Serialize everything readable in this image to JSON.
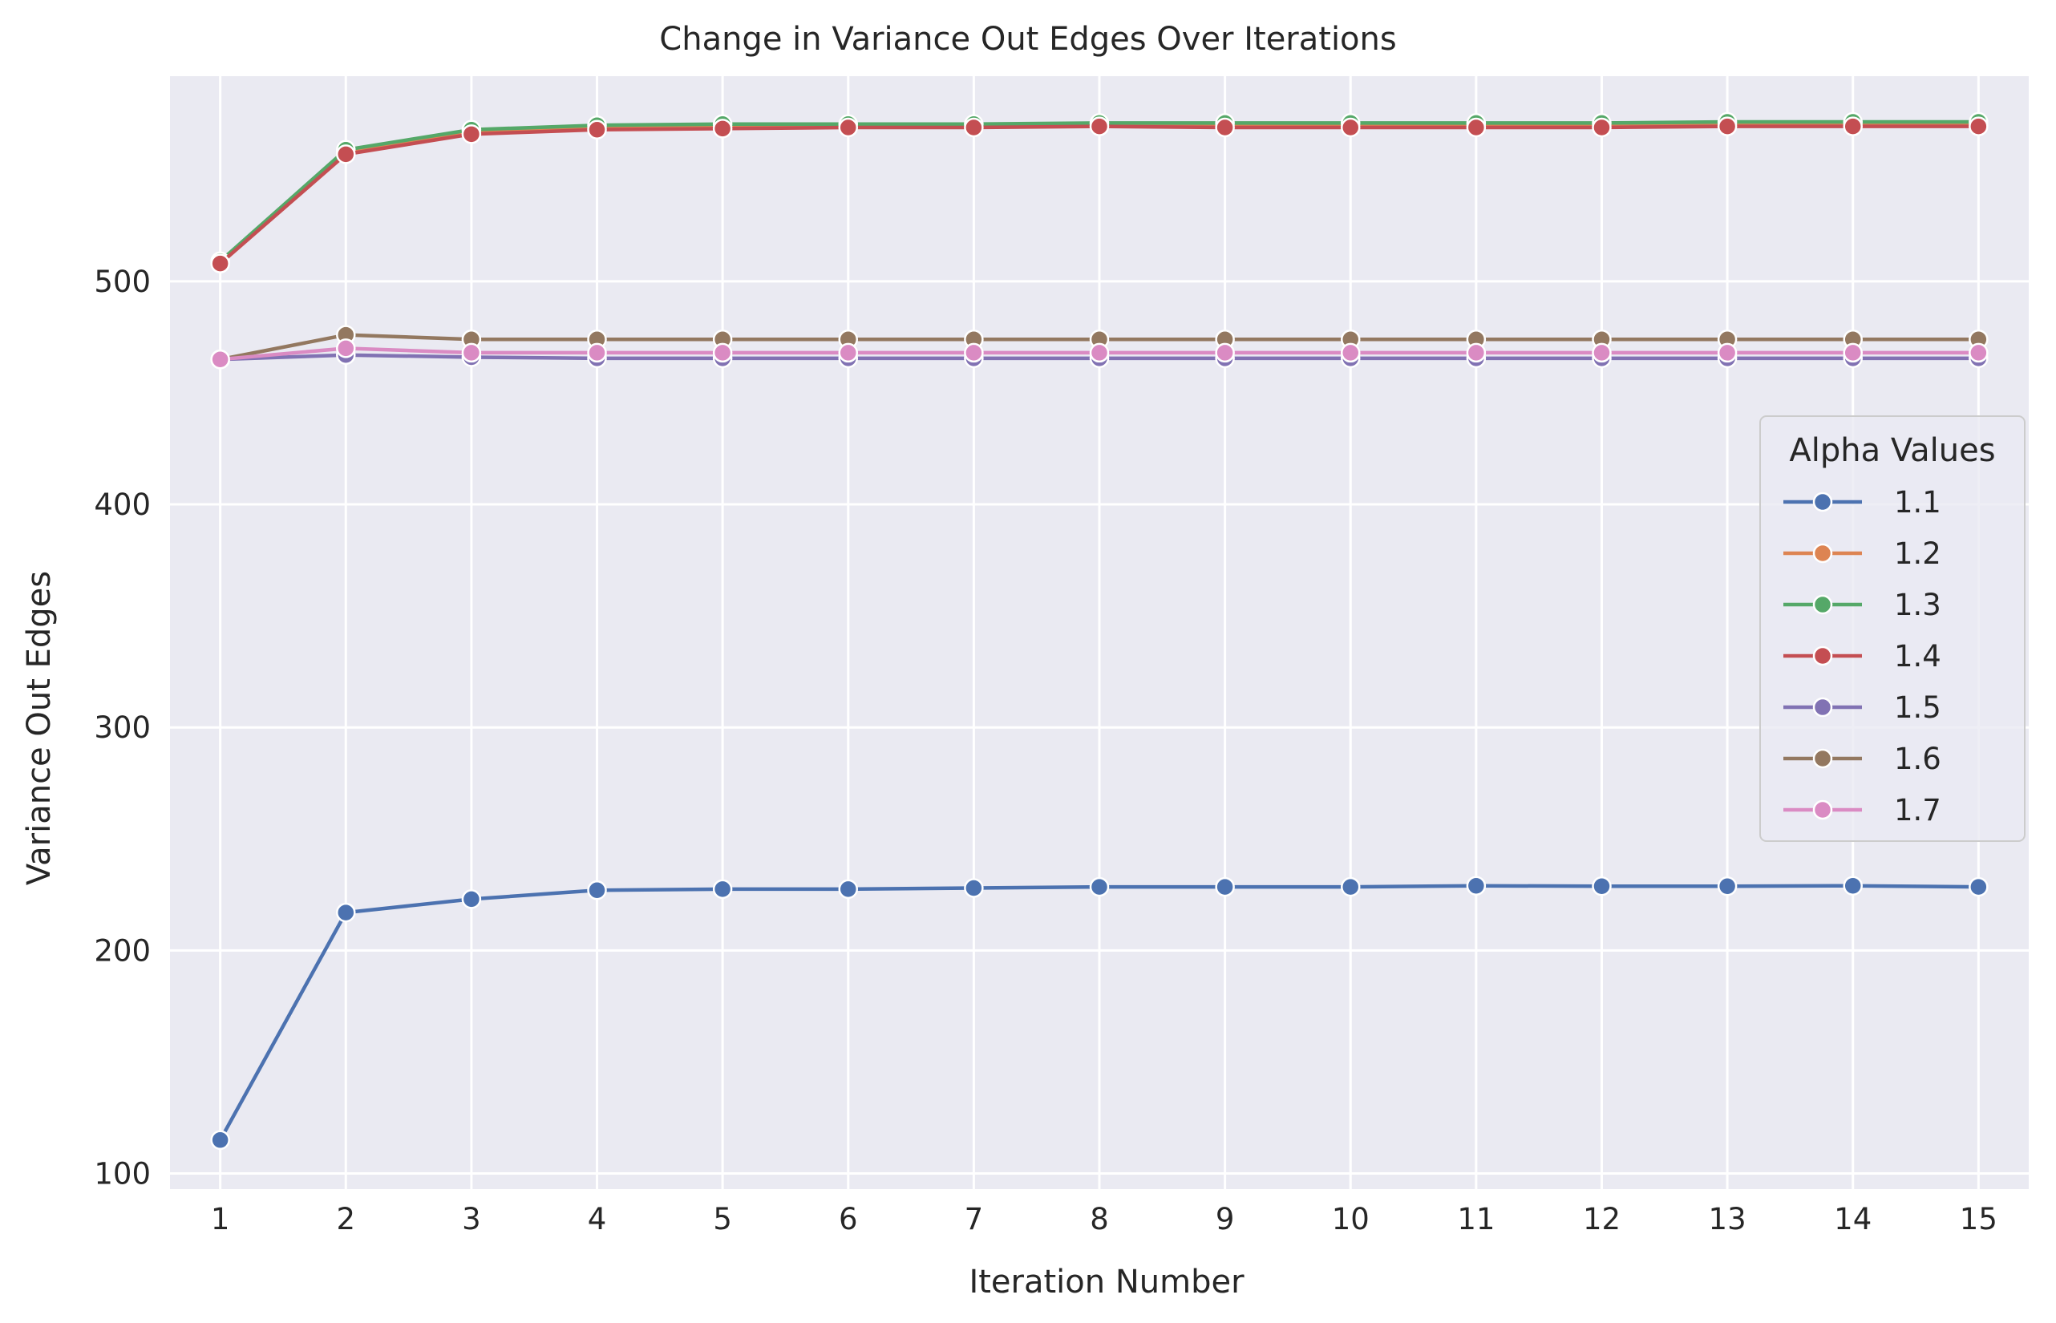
{
  "chart_data": {
    "type": "line",
    "title": "Change in Variance Out Edges Over Iterations",
    "xlabel": "Iteration Number",
    "ylabel": "Variance Out Edges",
    "x": [
      1,
      2,
      3,
      4,
      5,
      6,
      7,
      8,
      9,
      10,
      11,
      12,
      13,
      14,
      15
    ],
    "x_ticks": [
      1,
      2,
      3,
      4,
      5,
      6,
      7,
      8,
      9,
      10,
      11,
      12,
      13,
      14,
      15
    ],
    "y_ticks": [
      100,
      200,
      300,
      400,
      500
    ],
    "xlim": [
      0.6,
      15.4
    ],
    "ylim": [
      93,
      592
    ],
    "grid": true,
    "legend": {
      "title": "Alpha Values",
      "placement": "center-right"
    },
    "series": [
      {
        "name": "1.1",
        "color": "#4c72b0",
        "values": [
          115,
          217,
          223,
          227,
          227.5,
          227.5,
          228,
          228.5,
          228.5,
          228.5,
          229,
          228.8,
          228.8,
          229,
          228.5
        ]
      },
      {
        "name": "1.2",
        "color": "#dd8452",
        "values": [
          509,
          558,
          567,
          569,
          569.5,
          569.5,
          569.5,
          570,
          569.5,
          569.5,
          569.5,
          569.5,
          570,
          570,
          570
        ]
      },
      {
        "name": "1.3",
        "color": "#55a868",
        "values": [
          509,
          559,
          568,
          570,
          570.5,
          570.5,
          570.5,
          571,
          571,
          571,
          571,
          571,
          571.5,
          571.5,
          571.5
        ]
      },
      {
        "name": "1.4",
        "color": "#c44e52",
        "values": [
          508,
          557,
          566,
          568,
          568.5,
          569,
          569,
          569.5,
          569,
          569,
          569,
          569,
          569.5,
          569.5,
          569.5
        ]
      },
      {
        "name": "1.5",
        "color": "#8172b3",
        "values": [
          465,
          467,
          466,
          465.5,
          465.5,
          465.5,
          465.5,
          465.5,
          465.5,
          465.5,
          465.5,
          465.5,
          465.5,
          465.5,
          465.5
        ]
      },
      {
        "name": "1.6",
        "color": "#937860",
        "values": [
          465,
          476,
          474,
          474,
          474,
          474,
          474,
          474,
          474,
          474,
          474,
          474,
          474,
          474,
          474
        ]
      },
      {
        "name": "1.7",
        "color": "#da8bc3",
        "values": [
          465,
          470,
          468,
          468,
          468,
          468,
          468,
          468,
          468,
          468,
          468,
          468,
          468,
          468,
          468
        ]
      }
    ]
  }
}
